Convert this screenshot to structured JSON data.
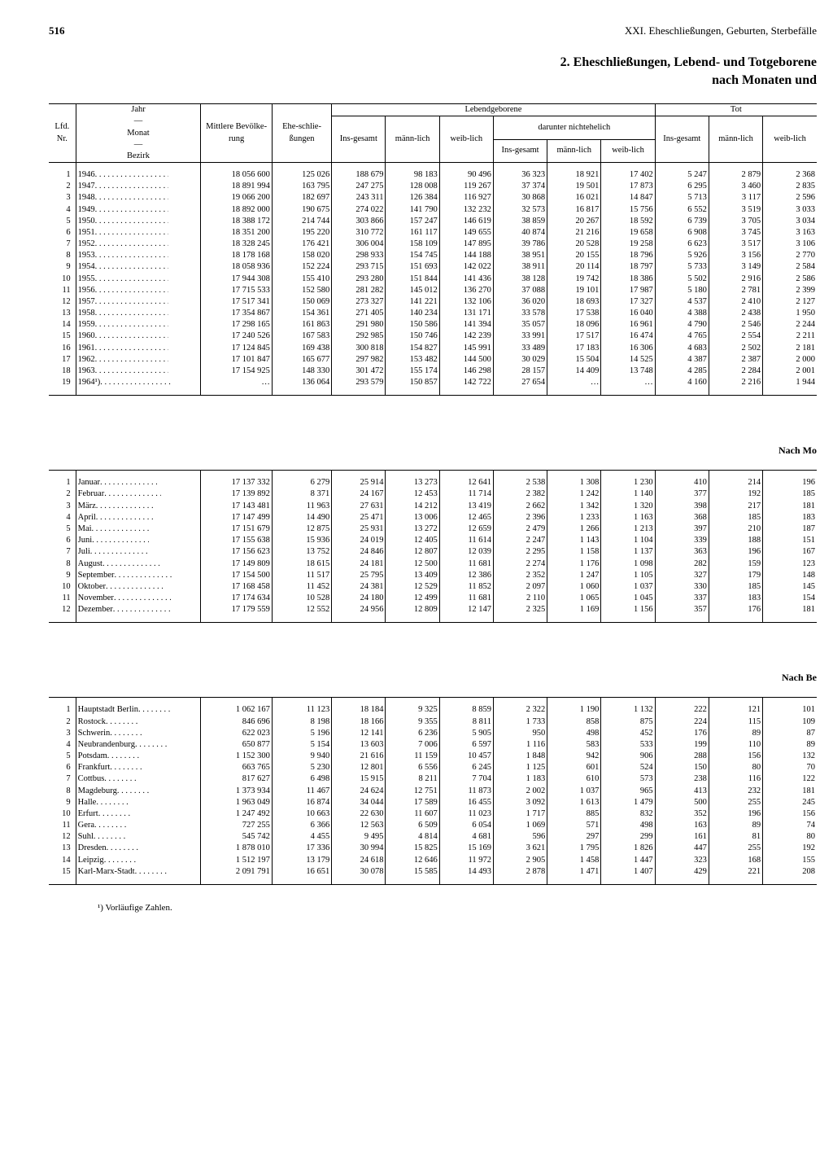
{
  "page_number": "516",
  "chapter": "XXI. Eheschließungen, Geburten, Sterbefälle",
  "title_line1": "2. Eheschließungen, Lebend- und Totgeborene",
  "title_line2": "nach Monaten und",
  "section_b_heading": "Nach Mo",
  "section_c_heading": "Nach Be",
  "footnote": "¹) Vorläufige Zahlen.",
  "header": {
    "lfd_nr": "Lfd. Nr.",
    "jahr": "Jahr",
    "monat": "Monat",
    "bezirk": "Bezirk",
    "pop": "Mittlere Bevölke-rung",
    "marriages": "Ehe-schlie-ßungen",
    "live_births": "Lebendgeborene",
    "illegit": "darunter nichtehelich",
    "stillbirths": "Tot",
    "total": "Ins-gesamt",
    "male": "männ-lich",
    "female": "weib-lich"
  },
  "years": [
    {
      "n": "1",
      "y": "1946",
      "pop": "18 056 600",
      "mar": "125 026",
      "lb_t": "188 679",
      "lb_m": "98 183",
      "lb_f": "90 496",
      "il_t": "36 323",
      "il_m": "18 921",
      "il_f": "17 402",
      "sb_t": "5 247",
      "sb_m": "2 879",
      "sb_f": "2 368"
    },
    {
      "n": "2",
      "y": "1947",
      "pop": "18 891 994",
      "mar": "163 795",
      "lb_t": "247 275",
      "lb_m": "128 008",
      "lb_f": "119 267",
      "il_t": "37 374",
      "il_m": "19 501",
      "il_f": "17 873",
      "sb_t": "6 295",
      "sb_m": "3 460",
      "sb_f": "2 835"
    },
    {
      "n": "3",
      "y": "1948",
      "pop": "19 066 200",
      "mar": "182 697",
      "lb_t": "243 311",
      "lb_m": "126 384",
      "lb_f": "116 927",
      "il_t": "30 868",
      "il_m": "16 021",
      "il_f": "14 847",
      "sb_t": "5 713",
      "sb_m": "3 117",
      "sb_f": "2 596"
    },
    {
      "n": "4",
      "y": "1949",
      "pop": "18 892 000",
      "mar": "190 675",
      "lb_t": "274 022",
      "lb_m": "141 790",
      "lb_f": "132 232",
      "il_t": "32 573",
      "il_m": "16 817",
      "il_f": "15 756",
      "sb_t": "6 552",
      "sb_m": "3 519",
      "sb_f": "3 033"
    },
    {
      "n": "5",
      "y": "1950",
      "pop": "18 388 172",
      "mar": "214 744",
      "lb_t": "303 866",
      "lb_m": "157 247",
      "lb_f": "146 619",
      "il_t": "38 859",
      "il_m": "20 267",
      "il_f": "18 592",
      "sb_t": "6 739",
      "sb_m": "3 705",
      "sb_f": "3 034"
    },
    {
      "n": "6",
      "y": "1951",
      "pop": "18 351 200",
      "mar": "195 220",
      "lb_t": "310 772",
      "lb_m": "161 117",
      "lb_f": "149 655",
      "il_t": "40 874",
      "il_m": "21 216",
      "il_f": "19 658",
      "sb_t": "6 908",
      "sb_m": "3 745",
      "sb_f": "3 163"
    },
    {
      "n": "7",
      "y": "1952",
      "pop": "18 328 245",
      "mar": "176 421",
      "lb_t": "306 004",
      "lb_m": "158 109",
      "lb_f": "147 895",
      "il_t": "39 786",
      "il_m": "20 528",
      "il_f": "19 258",
      "sb_t": "6 623",
      "sb_m": "3 517",
      "sb_f": "3 106"
    },
    {
      "n": "8",
      "y": "1953",
      "pop": "18 178 168",
      "mar": "158 020",
      "lb_t": "298 933",
      "lb_m": "154 745",
      "lb_f": "144 188",
      "il_t": "38 951",
      "il_m": "20 155",
      "il_f": "18 796",
      "sb_t": "5 926",
      "sb_m": "3 156",
      "sb_f": "2 770"
    },
    {
      "n": "9",
      "y": "1954",
      "pop": "18 058 936",
      "mar": "152 224",
      "lb_t": "293 715",
      "lb_m": "151 693",
      "lb_f": "142 022",
      "il_t": "38 911",
      "il_m": "20 114",
      "il_f": "18 797",
      "sb_t": "5 733",
      "sb_m": "3 149",
      "sb_f": "2 584"
    },
    {
      "n": "10",
      "y": "1955",
      "pop": "17 944 308",
      "mar": "155 410",
      "lb_t": "293 280",
      "lb_m": "151 844",
      "lb_f": "141 436",
      "il_t": "38 128",
      "il_m": "19 742",
      "il_f": "18 386",
      "sb_t": "5 502",
      "sb_m": "2 916",
      "sb_f": "2 586"
    },
    {
      "n": "11",
      "y": "1956",
      "pop": "17 715 533",
      "mar": "152 580",
      "lb_t": "281 282",
      "lb_m": "145 012",
      "lb_f": "136 270",
      "il_t": "37 088",
      "il_m": "19 101",
      "il_f": "17 987",
      "sb_t": "5 180",
      "sb_m": "2 781",
      "sb_f": "2 399"
    },
    {
      "n": "12",
      "y": "1957",
      "pop": "17 517 341",
      "mar": "150 069",
      "lb_t": "273 327",
      "lb_m": "141 221",
      "lb_f": "132 106",
      "il_t": "36 020",
      "il_m": "18 693",
      "il_f": "17 327",
      "sb_t": "4 537",
      "sb_m": "2 410",
      "sb_f": "2 127"
    },
    {
      "n": "13",
      "y": "1958",
      "pop": "17 354 867",
      "mar": "154 361",
      "lb_t": "271 405",
      "lb_m": "140 234",
      "lb_f": "131 171",
      "il_t": "33 578",
      "il_m": "17 538",
      "il_f": "16 040",
      "sb_t": "4 388",
      "sb_m": "2 438",
      "sb_f": "1 950"
    },
    {
      "n": "14",
      "y": "1959",
      "pop": "17 298 165",
      "mar": "161 863",
      "lb_t": "291 980",
      "lb_m": "150 586",
      "lb_f": "141 394",
      "il_t": "35 057",
      "il_m": "18 096",
      "il_f": "16 961",
      "sb_t": "4 790",
      "sb_m": "2 546",
      "sb_f": "2 244"
    },
    {
      "n": "15",
      "y": "1960",
      "pop": "17 240 526",
      "mar": "167 583",
      "lb_t": "292 985",
      "lb_m": "150 746",
      "lb_f": "142 239",
      "il_t": "33 991",
      "il_m": "17 517",
      "il_f": "16 474",
      "sb_t": "4 765",
      "sb_m": "2 554",
      "sb_f": "2 211"
    },
    {
      "n": "16",
      "y": "1961",
      "pop": "17 124 845",
      "mar": "169 438",
      "lb_t": "300 818",
      "lb_m": "154 827",
      "lb_f": "145 991",
      "il_t": "33 489",
      "il_m": "17 183",
      "il_f": "16 306",
      "sb_t": "4 683",
      "sb_m": "2 502",
      "sb_f": "2 181"
    },
    {
      "n": "17",
      "y": "1962",
      "pop": "17 101 847",
      "mar": "165 677",
      "lb_t": "297 982",
      "lb_m": "153 482",
      "lb_f": "144 500",
      "il_t": "30 029",
      "il_m": "15 504",
      "il_f": "14 525",
      "sb_t": "4 387",
      "sb_m": "2 387",
      "sb_f": "2 000"
    },
    {
      "n": "18",
      "y": "1963",
      "pop": "17 154 925",
      "mar": "148 330",
      "lb_t": "301 472",
      "lb_m": "155 174",
      "lb_f": "146 298",
      "il_t": "28 157",
      "il_m": "14 409",
      "il_f": "13 748",
      "sb_t": "4 285",
      "sb_m": "2 284",
      "sb_f": "2 001"
    },
    {
      "n": "19",
      "y": "1964¹)",
      "pop": "…",
      "mar": "136 064",
      "lb_t": "293 579",
      "lb_m": "150 857",
      "lb_f": "142 722",
      "il_t": "27 654",
      "il_m": "…",
      "il_f": "…",
      "sb_t": "4 160",
      "sb_m": "2 216",
      "sb_f": "1 944"
    }
  ],
  "months": [
    {
      "n": "1",
      "y": "Januar",
      "pop": "17 137 332",
      "mar": "6 279",
      "lb_t": "25 914",
      "lb_m": "13 273",
      "lb_f": "12 641",
      "il_t": "2 538",
      "il_m": "1 308",
      "il_f": "1 230",
      "sb_t": "410",
      "sb_m": "214",
      "sb_f": "196"
    },
    {
      "n": "2",
      "y": "Februar",
      "pop": "17 139 892",
      "mar": "8 371",
      "lb_t": "24 167",
      "lb_m": "12 453",
      "lb_f": "11 714",
      "il_t": "2 382",
      "il_m": "1 242",
      "il_f": "1 140",
      "sb_t": "377",
      "sb_m": "192",
      "sb_f": "185"
    },
    {
      "n": "3",
      "y": "März",
      "pop": "17 143 481",
      "mar": "11 963",
      "lb_t": "27 631",
      "lb_m": "14 212",
      "lb_f": "13 419",
      "il_t": "2 662",
      "il_m": "1 342",
      "il_f": "1 320",
      "sb_t": "398",
      "sb_m": "217",
      "sb_f": "181"
    },
    {
      "n": "4",
      "y": "April",
      "pop": "17 147 499",
      "mar": "14 490",
      "lb_t": "25 471",
      "lb_m": "13 006",
      "lb_f": "12 465",
      "il_t": "2 396",
      "il_m": "1 233",
      "il_f": "1 163",
      "sb_t": "368",
      "sb_m": "185",
      "sb_f": "183"
    },
    {
      "n": "5",
      "y": "Mai",
      "pop": "17 151 679",
      "mar": "12 875",
      "lb_t": "25 931",
      "lb_m": "13 272",
      "lb_f": "12 659",
      "il_t": "2 479",
      "il_m": "1 266",
      "il_f": "1 213",
      "sb_t": "397",
      "sb_m": "210",
      "sb_f": "187"
    },
    {
      "n": "6",
      "y": "Juni",
      "pop": "17 155 638",
      "mar": "15 936",
      "lb_t": "24 019",
      "lb_m": "12 405",
      "lb_f": "11 614",
      "il_t": "2 247",
      "il_m": "1 143",
      "il_f": "1 104",
      "sb_t": "339",
      "sb_m": "188",
      "sb_f": "151"
    },
    {
      "n": "7",
      "y": "Juli",
      "pop": "17 156 623",
      "mar": "13 752",
      "lb_t": "24 846",
      "lb_m": "12 807",
      "lb_f": "12 039",
      "il_t": "2 295",
      "il_m": "1 158",
      "il_f": "1 137",
      "sb_t": "363",
      "sb_m": "196",
      "sb_f": "167"
    },
    {
      "n": "8",
      "y": "August",
      "pop": "17 149 809",
      "mar": "18 615",
      "lb_t": "24 181",
      "lb_m": "12 500",
      "lb_f": "11 681",
      "il_t": "2 274",
      "il_m": "1 176",
      "il_f": "1 098",
      "sb_t": "282",
      "sb_m": "159",
      "sb_f": "123"
    },
    {
      "n": "9",
      "y": "September",
      "pop": "17 154 500",
      "mar": "11 517",
      "lb_t": "25 795",
      "lb_m": "13 409",
      "lb_f": "12 386",
      "il_t": "2 352",
      "il_m": "1 247",
      "il_f": "1 105",
      "sb_t": "327",
      "sb_m": "179",
      "sb_f": "148"
    },
    {
      "n": "10",
      "y": "Oktober",
      "pop": "17 168 458",
      "mar": "11 452",
      "lb_t": "24 381",
      "lb_m": "12 529",
      "lb_f": "11 852",
      "il_t": "2 097",
      "il_m": "1 060",
      "il_f": "1 037",
      "sb_t": "330",
      "sb_m": "185",
      "sb_f": "145"
    },
    {
      "n": "11",
      "y": "November",
      "pop": "17 174 634",
      "mar": "10 528",
      "lb_t": "24 180",
      "lb_m": "12 499",
      "lb_f": "11 681",
      "il_t": "2 110",
      "il_m": "1 065",
      "il_f": "1 045",
      "sb_t": "337",
      "sb_m": "183",
      "sb_f": "154"
    },
    {
      "n": "12",
      "y": "Dezember",
      "pop": "17 179 559",
      "mar": "12 552",
      "lb_t": "24 956",
      "lb_m": "12 809",
      "lb_f": "12 147",
      "il_t": "2 325",
      "il_m": "1 169",
      "il_f": "1 156",
      "sb_t": "357",
      "sb_m": "176",
      "sb_f": "181"
    }
  ],
  "districts": [
    {
      "n": "1",
      "y": "Hauptstadt Berlin",
      "pop": "1 062 167",
      "mar": "11 123",
      "lb_t": "18 184",
      "lb_m": "9 325",
      "lb_f": "8 859",
      "il_t": "2 322",
      "il_m": "1 190",
      "il_f": "1 132",
      "sb_t": "222",
      "sb_m": "121",
      "sb_f": "101"
    },
    {
      "n": "2",
      "y": "Rostock",
      "pop": "846 696",
      "mar": "8 198",
      "lb_t": "18 166",
      "lb_m": "9 355",
      "lb_f": "8 811",
      "il_t": "1 733",
      "il_m": "858",
      "il_f": "875",
      "sb_t": "224",
      "sb_m": "115",
      "sb_f": "109"
    },
    {
      "n": "3",
      "y": "Schwerin",
      "pop": "622 023",
      "mar": "5 196",
      "lb_t": "12 141",
      "lb_m": "6 236",
      "lb_f": "5 905",
      "il_t": "950",
      "il_m": "498",
      "il_f": "452",
      "sb_t": "176",
      "sb_m": "89",
      "sb_f": "87"
    },
    {
      "n": "4",
      "y": "Neubrandenburg",
      "pop": "650 877",
      "mar": "5 154",
      "lb_t": "13 603",
      "lb_m": "7 006",
      "lb_f": "6 597",
      "il_t": "1 116",
      "il_m": "583",
      "il_f": "533",
      "sb_t": "199",
      "sb_m": "110",
      "sb_f": "89"
    },
    {
      "n": "5",
      "y": "Potsdam",
      "pop": "1 152 300",
      "mar": "9 940",
      "lb_t": "21 616",
      "lb_m": "11 159",
      "lb_f": "10 457",
      "il_t": "1 848",
      "il_m": "942",
      "il_f": "906",
      "sb_t": "288",
      "sb_m": "156",
      "sb_f": "132"
    },
    {
      "n": "6",
      "y": "Frankfurt",
      "pop": "663 765",
      "mar": "5 230",
      "lb_t": "12 801",
      "lb_m": "6 556",
      "lb_f": "6 245",
      "il_t": "1 125",
      "il_m": "601",
      "il_f": "524",
      "sb_t": "150",
      "sb_m": "80",
      "sb_f": "70"
    },
    {
      "n": "7",
      "y": "Cottbus",
      "pop": "817 627",
      "mar": "6 498",
      "lb_t": "15 915",
      "lb_m": "8 211",
      "lb_f": "7 704",
      "il_t": "1 183",
      "il_m": "610",
      "il_f": "573",
      "sb_t": "238",
      "sb_m": "116",
      "sb_f": "122"
    },
    {
      "n": "8",
      "y": "Magdeburg",
      "pop": "1 373 934",
      "mar": "11 467",
      "lb_t": "24 624",
      "lb_m": "12 751",
      "lb_f": "11 873",
      "il_t": "2 002",
      "il_m": "1 037",
      "il_f": "965",
      "sb_t": "413",
      "sb_m": "232",
      "sb_f": "181"
    },
    {
      "n": "9",
      "y": "Halle",
      "pop": "1 963 049",
      "mar": "16 874",
      "lb_t": "34 044",
      "lb_m": "17 589",
      "lb_f": "16 455",
      "il_t": "3 092",
      "il_m": "1 613",
      "il_f": "1 479",
      "sb_t": "500",
      "sb_m": "255",
      "sb_f": "245"
    },
    {
      "n": "10",
      "y": "Erfurt",
      "pop": "1 247 492",
      "mar": "10 663",
      "lb_t": "22 630",
      "lb_m": "11 607",
      "lb_f": "11 023",
      "il_t": "1 717",
      "il_m": "885",
      "il_f": "832",
      "sb_t": "352",
      "sb_m": "196",
      "sb_f": "156"
    },
    {
      "n": "11",
      "y": "Gera",
      "pop": "727 255",
      "mar": "6 366",
      "lb_t": "12 563",
      "lb_m": "6 509",
      "lb_f": "6 054",
      "il_t": "1 069",
      "il_m": "571",
      "il_f": "498",
      "sb_t": "163",
      "sb_m": "89",
      "sb_f": "74"
    },
    {
      "n": "12",
      "y": "Suhl",
      "pop": "545 742",
      "mar": "4 455",
      "lb_t": "9 495",
      "lb_m": "4 814",
      "lb_f": "4 681",
      "il_t": "596",
      "il_m": "297",
      "il_f": "299",
      "sb_t": "161",
      "sb_m": "81",
      "sb_f": "80"
    },
    {
      "n": "13",
      "y": "Dresden",
      "pop": "1 878 010",
      "mar": "17 336",
      "lb_t": "30 994",
      "lb_m": "15 825",
      "lb_f": "15 169",
      "il_t": "3 621",
      "il_m": "1 795",
      "il_f": "1 826",
      "sb_t": "447",
      "sb_m": "255",
      "sb_f": "192"
    },
    {
      "n": "14",
      "y": "Leipzig",
      "pop": "1 512 197",
      "mar": "13 179",
      "lb_t": "24 618",
      "lb_m": "12 646",
      "lb_f": "11 972",
      "il_t": "2 905",
      "il_m": "1 458",
      "il_f": "1 447",
      "sb_t": "323",
      "sb_m": "168",
      "sb_f": "155"
    },
    {
      "n": "15",
      "y": "Karl-Marx-Stadt",
      "pop": "2 091 791",
      "mar": "16 651",
      "lb_t": "30 078",
      "lb_m": "15 585",
      "lb_f": "14 493",
      "il_t": "2 878",
      "il_m": "1 471",
      "il_f": "1 407",
      "sb_t": "429",
      "sb_m": "221",
      "sb_f": "208"
    }
  ]
}
